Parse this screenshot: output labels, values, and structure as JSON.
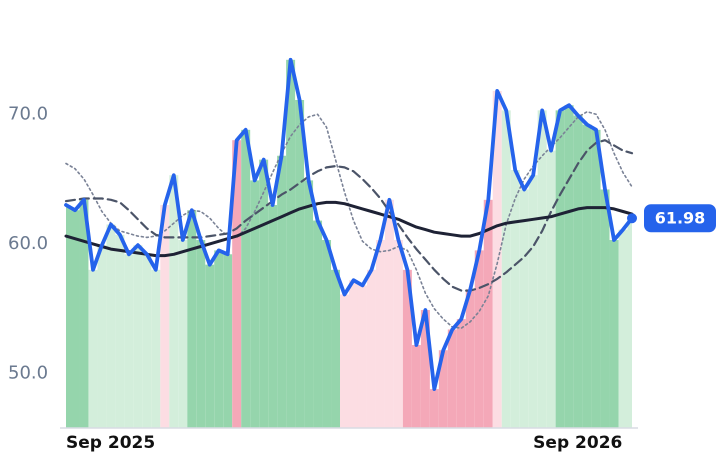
{
  "chart_data": {
    "type": "line",
    "categories": [
      "Sep 2025",
      null,
      null,
      null,
      null,
      null,
      null,
      null,
      null,
      null,
      null,
      null,
      null,
      null,
      null,
      null,
      null,
      null,
      null,
      null,
      null,
      null,
      null,
      null,
      null,
      null,
      null,
      null,
      null,
      null,
      null,
      null,
      null,
      null,
      null,
      null,
      null,
      null,
      null,
      null,
      null,
      null,
      null,
      null,
      null,
      null,
      null,
      null,
      null,
      null,
      null,
      null,
      "Sep 2026",
      null,
      null,
      null,
      null,
      null,
      null,
      null,
      null,
      null,
      null,
      null
    ],
    "series": [
      {
        "color": "#2563eb",
        "style": "solid",
        "values": [
          63.0,
          62.6,
          63.4,
          58.0,
          59.9,
          61.5,
          60.7,
          59.2,
          59.9,
          59.2,
          58.0,
          63.0,
          65.3,
          60.3,
          62.6,
          60.3,
          58.4,
          59.5,
          59.2,
          68.0,
          68.8,
          64.9,
          66.5,
          63.0,
          66.8,
          74.2,
          71.1,
          64.9,
          61.8,
          60.3,
          58.0,
          56.1,
          57.2,
          56.8,
          58.0,
          60.3,
          63.4,
          60.3,
          58.0,
          52.2,
          54.9,
          48.8,
          51.8,
          53.4,
          54.2,
          56.5,
          59.5,
          63.4,
          71.8,
          70.3,
          65.7,
          64.2,
          65.3,
          70.3,
          67.2,
          70.3,
          70.7,
          69.9,
          69.2,
          68.8,
          64.2,
          60.3,
          61.1,
          61.98
        ]
      },
      {
        "color": "#1e2235",
        "style": "solid",
        "values": [
          60.6,
          60.4,
          60.2,
          60.0,
          59.8,
          59.6,
          59.5,
          59.4,
          59.3,
          59.2,
          59.1,
          59.1,
          59.2,
          59.4,
          59.6,
          59.8,
          60.0,
          60.2,
          60.4,
          60.6,
          60.9,
          61.2,
          61.5,
          61.8,
          62.1,
          62.4,
          62.7,
          62.9,
          63.1,
          63.2,
          63.2,
          63.1,
          62.9,
          62.7,
          62.5,
          62.3,
          62.1,
          61.9,
          61.6,
          61.3,
          61.1,
          60.9,
          60.8,
          60.7,
          60.6,
          60.6,
          60.8,
          61.1,
          61.4,
          61.6,
          61.7,
          61.8,
          61.9,
          62.0,
          62.1,
          62.3,
          62.5,
          62.7,
          62.8,
          62.8,
          62.8,
          62.7,
          62.5,
          62.3
        ]
      },
      {
        "color": "#4b5468",
        "style": "dashed",
        "values": [
          63.3,
          63.4,
          63.5,
          63.5,
          63.5,
          63.4,
          63.2,
          62.6,
          61.9,
          61.2,
          60.7,
          60.5,
          60.5,
          60.5,
          60.5,
          60.5,
          60.6,
          60.7,
          60.8,
          61.2,
          61.8,
          62.3,
          62.8,
          63.3,
          63.8,
          64.2,
          64.7,
          65.2,
          65.6,
          65.9,
          66.0,
          65.9,
          65.6,
          65.0,
          64.3,
          63.5,
          62.5,
          61.5,
          60.5,
          59.6,
          58.8,
          58.0,
          57.3,
          56.7,
          56.4,
          56.4,
          56.6,
          56.9,
          57.3,
          57.8,
          58.4,
          59.0,
          59.8,
          61.0,
          62.5,
          63.8,
          65.0,
          66.2,
          67.2,
          67.8,
          68.0,
          67.6,
          67.2,
          67.0
        ]
      },
      {
        "color": "#7a8296",
        "style": "dotted",
        "values": [
          66.2,
          65.8,
          65.0,
          63.8,
          62.5,
          61.6,
          61.0,
          60.8,
          60.6,
          60.5,
          60.6,
          61.0,
          61.6,
          62.2,
          62.6,
          62.5,
          62.0,
          61.2,
          60.6,
          60.5,
          61.2,
          62.5,
          64.0,
          65.5,
          67.0,
          68.3,
          69.2,
          69.8,
          70.0,
          69.0,
          66.5,
          64.0,
          61.8,
          60.2,
          59.6,
          59.4,
          59.5,
          59.8,
          59.5,
          58.0,
          56.2,
          55.0,
          54.2,
          53.6,
          53.5,
          54.0,
          54.8,
          56.0,
          58.5,
          61.5,
          63.5,
          65.0,
          66.0,
          66.8,
          67.5,
          68.2,
          69.0,
          69.8,
          70.2,
          70.0,
          68.8,
          67.0,
          65.5,
          64.4
        ]
      }
    ],
    "bar_colors": [
      "#95d5ac",
      "#95d5ac",
      "#95d5ac",
      "#d3eedb",
      "#d3eedb",
      "#d3eedb",
      "#d3eedb",
      "#d3eedb",
      "#d3eedb",
      "#d3eedb",
      "#d3eedb",
      "#fcdde3",
      "#d3eedb",
      "#d3eedb",
      "#95d5ac",
      "#95d5ac",
      "#95d5ac",
      "#95d5ac",
      "#95d5ac",
      "#f4a8b8",
      "#95d5ac",
      "#95d5ac",
      "#95d5ac",
      "#95d5ac",
      "#95d5ac",
      "#95d5ac",
      "#95d5ac",
      "#95d5ac",
      "#95d5ac",
      "#95d5ac",
      "#95d5ac",
      "#fcdde3",
      "#fcdde3",
      "#fcdde3",
      "#fcdde3",
      "#fcdde3",
      "#fcdde3",
      "#fcdde3",
      "#f4a8b8",
      "#f4a8b8",
      "#f4a8b8",
      "#f4a8b8",
      "#f4a8b8",
      "#f4a8b8",
      "#f4a8b8",
      "#f4a8b8",
      "#f4a8b8",
      "#f4a8b8",
      "#fcdde3",
      "#d3eedb",
      "#d3eedb",
      "#d3eedb",
      "#d3eedb",
      "#d3eedb",
      "#d3eedb",
      "#95d5ac",
      "#95d5ac",
      "#95d5ac",
      "#95d5ac",
      "#95d5ac",
      "#95d5ac",
      "#95d5ac",
      "#d3eedb",
      "#d3eedb"
    ],
    "ylim": [
      45.8,
      76.5
    ],
    "yticks": [
      {
        "value": 50,
        "label": "50.0"
      },
      {
        "value": 60,
        "label": "60.0"
      },
      {
        "value": 70,
        "label": "70.0"
      }
    ],
    "last_value_badge": true
  }
}
